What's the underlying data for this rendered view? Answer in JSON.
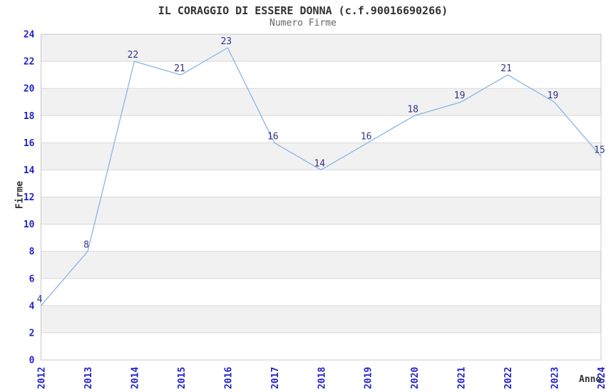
{
  "chart_data": {
    "type": "line",
    "title": "IL CORAGGIO DI ESSERE DONNA (c.f.90016690266)",
    "subtitle": "Numero Firme",
    "xlabel": "Anno",
    "ylabel": "Firme",
    "categories": [
      "2012",
      "2013",
      "2014",
      "2015",
      "2016",
      "2017",
      "2018",
      "2019",
      "2020",
      "2021",
      "2022",
      "2023",
      "2024"
    ],
    "values": [
      4,
      8,
      22,
      21,
      23,
      16,
      14,
      16,
      18,
      19,
      21,
      19,
      15
    ],
    "ylim": [
      0,
      24
    ],
    "ytick_step": 2,
    "grid": true,
    "legend_position": "none",
    "band_fill_alternating": true,
    "colors": {
      "line": "#88b5e8",
      "tick_label": "#2222cc",
      "value_label": "#333388",
      "band": "#f1f1f1",
      "gridline": "#d9d9d9",
      "border": "#c8c8c8",
      "title": "#333333",
      "subtitle": "#666666",
      "axis_title": "#333333",
      "background": "#ffffff"
    }
  }
}
